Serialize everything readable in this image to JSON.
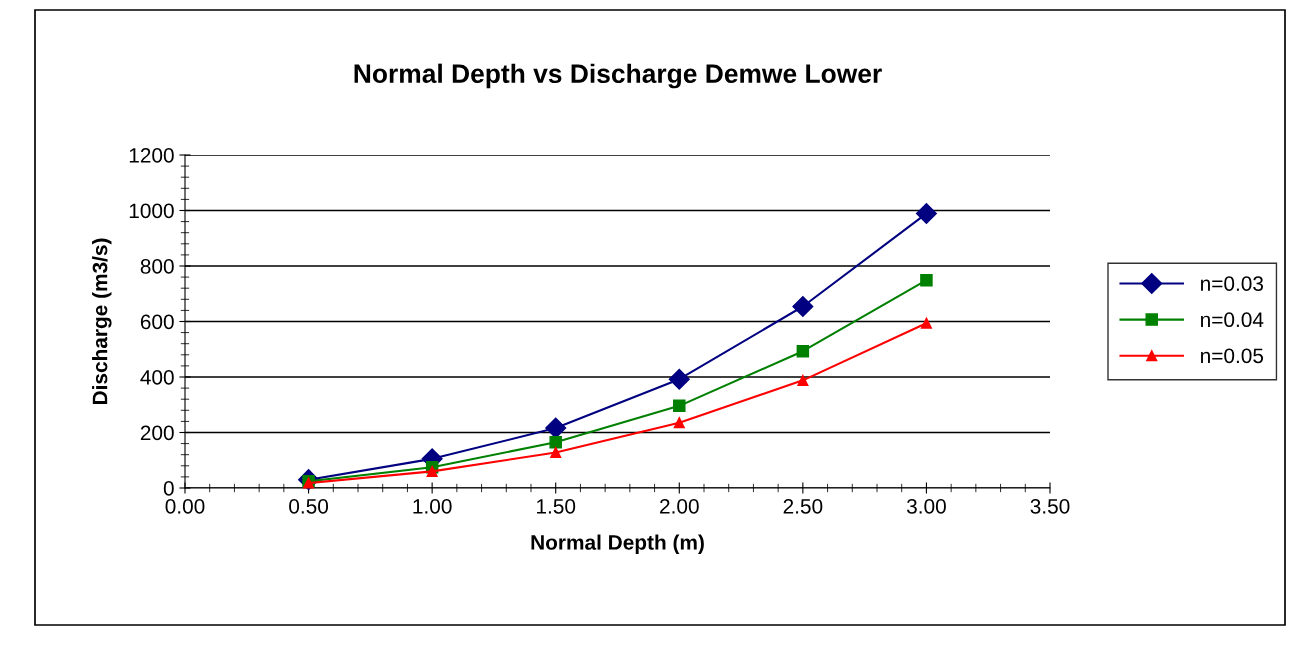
{
  "chart_data": {
    "type": "line",
    "title": "Normal Depth vs Discharge Demwe Lower",
    "xlabel": "Normal Depth (m)",
    "ylabel": "Discharge (m3/s)",
    "x": [
      0.5,
      1.0,
      1.5,
      2.0,
      2.5,
      3.0
    ],
    "series": [
      {
        "name": "n=0.03",
        "color": "#000080",
        "marker": "diamond",
        "values": [
          30,
          105,
          216,
          392,
          654,
          989
        ]
      },
      {
        "name": "n=0.04",
        "color": "#008000",
        "marker": "square",
        "values": [
          24,
          75,
          165,
          296,
          493,
          749
        ]
      },
      {
        "name": "n=0.05",
        "color": "#ff0000",
        "marker": "triangle",
        "values": [
          18,
          60,
          128,
          235,
          388,
          594
        ]
      }
    ],
    "xlim": [
      0,
      3.5
    ],
    "xticks": [
      {
        "value": 0,
        "label": "0.00"
      },
      {
        "value": 0.5,
        "label": "0.50"
      },
      {
        "value": 1.0,
        "label": "1.00"
      },
      {
        "value": 1.5,
        "label": "1.50"
      },
      {
        "value": 2.0,
        "label": "2.00"
      },
      {
        "value": 2.5,
        "label": "2.50"
      },
      {
        "value": 3.0,
        "label": "3.00"
      },
      {
        "value": 3.5,
        "label": "3.50"
      }
    ],
    "ylim": [
      0,
      1200
    ],
    "yticks": [
      0,
      200,
      400,
      600,
      800,
      1000,
      1200
    ],
    "grid": "y",
    "legend": "right",
    "line_style": "solid"
  }
}
